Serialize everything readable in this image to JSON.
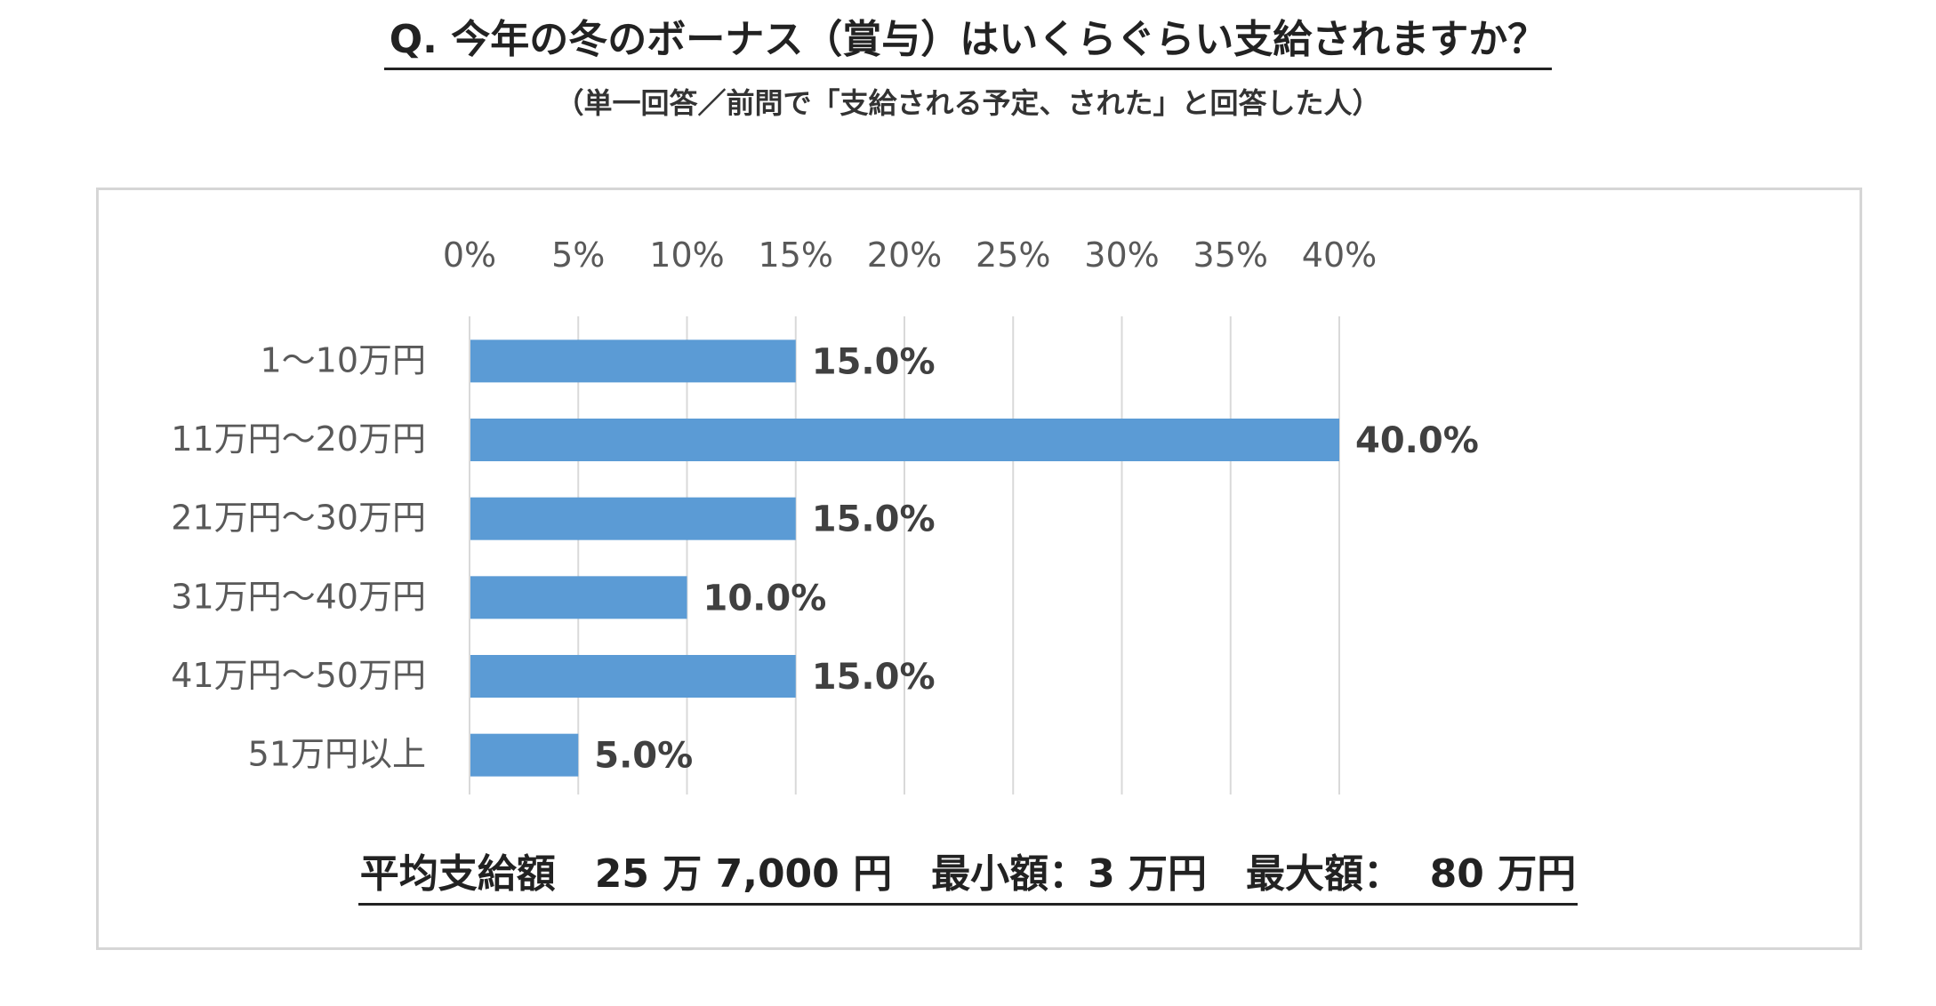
{
  "title": "Q. 今年の冬のボーナス（賞与）はいくらぐらい支給されますか？",
  "subtitle": "（単一回答／前問で「支給される予定、された」と回答した人）",
  "summary": "平均支給額　25 万 7,000 円　最小額：3 万円　最大額：  80 万円",
  "colors": {
    "bar": "#5b9bd5",
    "grid": "#d9d9d9",
    "tick_label": "#595959",
    "data_label": "#404040"
  },
  "chart_data": {
    "type": "bar",
    "orientation": "horizontal",
    "categories": [
      "1～10万円",
      "11万円～20万円",
      "21万円～30万円",
      "31万円～40万円",
      "41万円～50万円",
      "51万円以上"
    ],
    "values": [
      15.0,
      40.0,
      15.0,
      10.0,
      15.0,
      5.0
    ],
    "data_labels": [
      "15.0%",
      "40.0%",
      "15.0%",
      "10.0%",
      "15.0%",
      "5.0%"
    ],
    "x_ticks": [
      "0%",
      "5%",
      "10%",
      "15%",
      "20%",
      "25%",
      "30%",
      "35%",
      "40%"
    ],
    "xlim": [
      0,
      40
    ],
    "x_axis_position": "top",
    "grid": true,
    "legend": "none",
    "title": "",
    "xlabel": "",
    "ylabel": ""
  }
}
